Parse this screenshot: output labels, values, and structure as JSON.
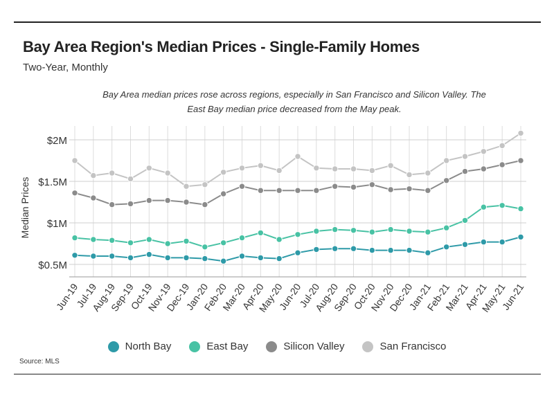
{
  "header": {
    "title": "Bay Area Region's Median Prices - Single-Family Homes",
    "subtitle": "Two-Year, Monthly",
    "note": "Bay Area median prices rose across regions, especially in San Francisco and Silicon Valley. The East Bay median price decreased from the May peak."
  },
  "footer": {
    "source": "Source:  MLS"
  },
  "chart_data": {
    "type": "line",
    "title": "Bay Area Region's Median Prices - Single-Family Homes",
    "subtitle": "Two-Year, Monthly",
    "xlabel": "",
    "ylabel": "Median Prices",
    "ylim": [
      0.35,
      2.1
    ],
    "y_ticks": [
      0.5,
      1,
      1.5,
      2
    ],
    "y_tick_labels": [
      "$0.5M",
      "$1M",
      "$1.5M",
      "$2M"
    ],
    "grid": true,
    "legend_position": "bottom",
    "categories": [
      "Jun-19",
      "Jul-19",
      "Aug-19",
      "Sep-19",
      "Oct-19",
      "Nov-19",
      "Dec-19",
      "Jan-20",
      "Feb-20",
      "Mar-20",
      "Apr-20",
      "May-20",
      "Jun-20",
      "Jul-20",
      "Aug-20",
      "Sep-20",
      "Oct-20",
      "Nov-20",
      "Dec-20",
      "Jan-21",
      "Feb-21",
      "Mar-21",
      "Apr-21",
      "May-21",
      "Jun-21"
    ],
    "series": [
      {
        "name": "North Bay",
        "color": "#2e9aa8",
        "values": [
          0.61,
          0.6,
          0.6,
          0.58,
          0.62,
          0.58,
          0.58,
          0.57,
          0.54,
          0.6,
          0.58,
          0.57,
          0.64,
          0.68,
          0.69,
          0.69,
          0.67,
          0.67,
          0.67,
          0.64,
          0.71,
          0.74,
          0.77,
          0.77,
          0.83
        ]
      },
      {
        "name": "East Bay",
        "color": "#48c2a4",
        "values": [
          0.82,
          0.8,
          0.79,
          0.76,
          0.8,
          0.75,
          0.78,
          0.71,
          0.76,
          0.82,
          0.88,
          0.8,
          0.86,
          0.9,
          0.92,
          0.91,
          0.89,
          0.92,
          0.9,
          0.89,
          0.94,
          1.03,
          1.19,
          1.21,
          1.17
        ]
      },
      {
        "name": "Silicon Valley",
        "color": "#8b8b8b",
        "values": [
          1.36,
          1.3,
          1.22,
          1.23,
          1.27,
          1.27,
          1.25,
          1.22,
          1.35,
          1.44,
          1.39,
          1.39,
          1.39,
          1.39,
          1.44,
          1.43,
          1.46,
          1.4,
          1.41,
          1.39,
          1.51,
          1.62,
          1.65,
          1.7,
          1.75
        ]
      },
      {
        "name": "San Francisco",
        "color": "#c4c4c4",
        "values": [
          1.75,
          1.57,
          1.6,
          1.53,
          1.66,
          1.6,
          1.44,
          1.46,
          1.61,
          1.66,
          1.69,
          1.63,
          1.8,
          1.66,
          1.65,
          1.65,
          1.63,
          1.69,
          1.58,
          1.6,
          1.75,
          1.8,
          1.86,
          1.93,
          2.08
        ]
      }
    ]
  }
}
